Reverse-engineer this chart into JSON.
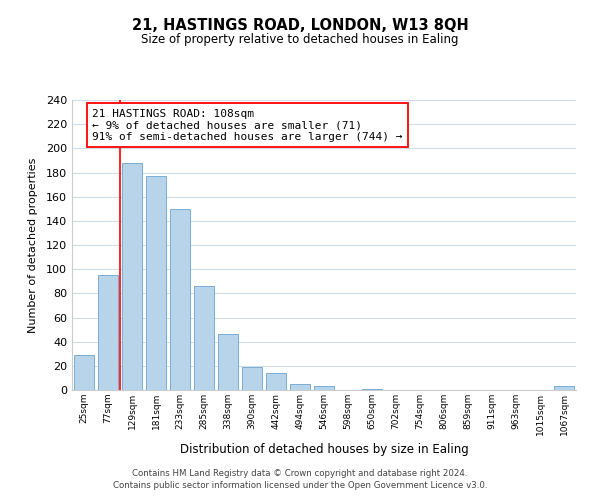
{
  "title": "21, HASTINGS ROAD, LONDON, W13 8QH",
  "subtitle": "Size of property relative to detached houses in Ealing",
  "xlabel": "Distribution of detached houses by size in Ealing",
  "ylabel": "Number of detached properties",
  "bar_labels": [
    "25sqm",
    "77sqm",
    "129sqm",
    "181sqm",
    "233sqm",
    "285sqm",
    "338sqm",
    "390sqm",
    "442sqm",
    "494sqm",
    "546sqm",
    "598sqm",
    "650sqm",
    "702sqm",
    "754sqm",
    "806sqm",
    "859sqm",
    "911sqm",
    "963sqm",
    "1015sqm",
    "1067sqm"
  ],
  "bar_values": [
    29,
    95,
    188,
    177,
    150,
    86,
    46,
    19,
    14,
    5,
    3,
    0,
    1,
    0,
    0,
    0,
    0,
    0,
    0,
    0,
    3
  ],
  "bar_color": "#b8d4ea",
  "bar_edge_color": "#7aaed4",
  "annotation_text_line1": "21 HASTINGS ROAD: 108sqm",
  "annotation_text_line2": "← 9% of detached houses are smaller (71)",
  "annotation_text_line3": "91% of semi-detached houses are larger (744) →",
  "red_line_x": 1.5,
  "ylim": [
    0,
    240
  ],
  "yticks": [
    0,
    20,
    40,
    60,
    80,
    100,
    120,
    140,
    160,
    180,
    200,
    220,
    240
  ],
  "footer_line1": "Contains HM Land Registry data © Crown copyright and database right 2024.",
  "footer_line2": "Contains public sector information licensed under the Open Government Licence v3.0.",
  "background_color": "#ffffff",
  "grid_color": "#d0dce8"
}
